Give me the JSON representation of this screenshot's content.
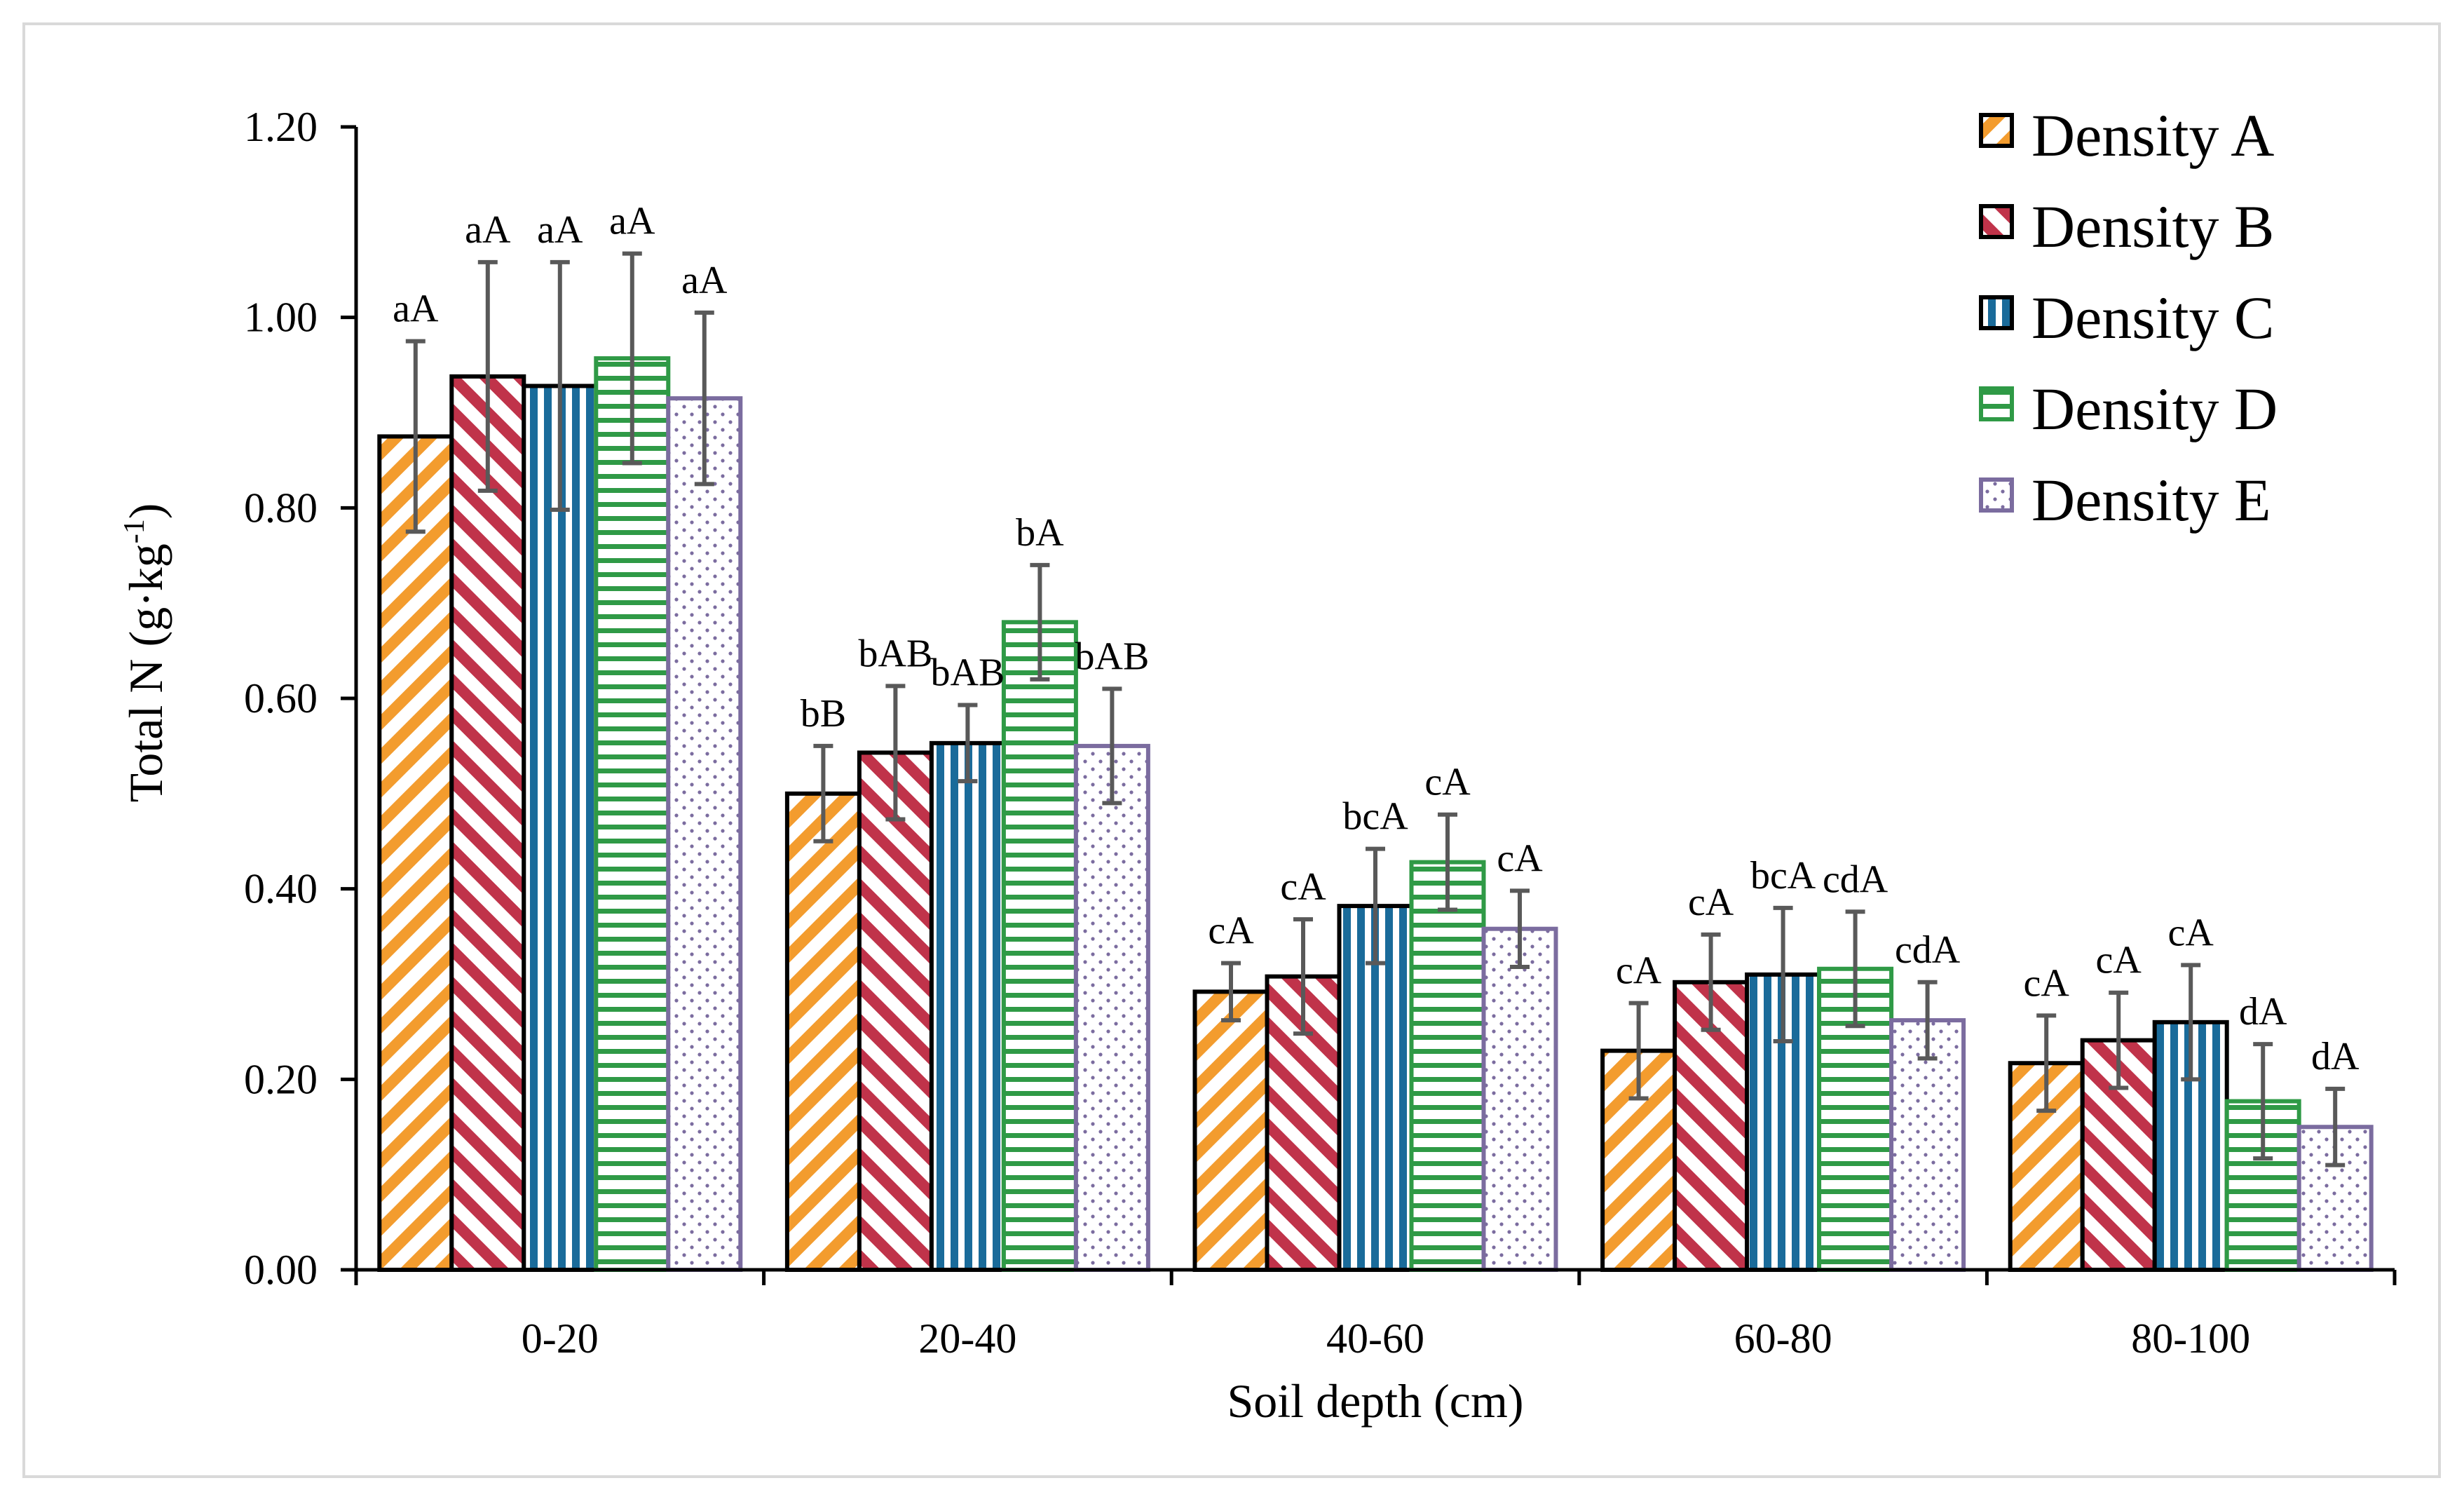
{
  "chart_data": {
    "type": "bar",
    "title": "",
    "xlabel": "Soil depth (cm)",
    "ylabel": "Total N (g·kg⁻¹)",
    "ylabel_main": "Total N (g·kg",
    "ylabel_sup": "-1",
    "ylabel_end": ")",
    "ylim": [
      0,
      1.2
    ],
    "yticks": [
      "0.00",
      "0.20",
      "0.40",
      "0.60",
      "0.80",
      "1.00",
      "1.20"
    ],
    "grid": false,
    "legend_position": "top-right",
    "categories": [
      "0-20",
      "20-40",
      "40-60",
      "60-80",
      "80-100"
    ],
    "series": [
      {
        "name": "Density A",
        "color": "#f39c2e",
        "pattern": "diagonal-forward",
        "values": [
          0.875,
          0.5,
          0.292,
          0.23,
          0.217
        ],
        "errors": [
          0.1,
          0.05,
          0.03,
          0.05,
          0.05
        ],
        "labels": [
          "aA",
          "bB",
          "cA",
          "cA",
          "cA"
        ]
      },
      {
        "name": "Density B",
        "color": "#c0334a",
        "pattern": "diagonal-backward",
        "values": [
          0.938,
          0.543,
          0.308,
          0.302,
          0.241
        ],
        "errors": [
          0.12,
          0.07,
          0.06,
          0.05,
          0.05
        ],
        "labels": [
          "aA",
          "bAB",
          "cA",
          "cA",
          "cA"
        ]
      },
      {
        "name": "Density C",
        "color": "#1a6b9a",
        "pattern": "vertical",
        "values": [
          0.928,
          0.553,
          0.382,
          0.31,
          0.26
        ],
        "errors": [
          0.13,
          0.04,
          0.06,
          0.07,
          0.06
        ],
        "labels": [
          "aA",
          "bAB",
          "bcA",
          "bcA",
          "cA"
        ]
      },
      {
        "name": "Density D",
        "color": "#2f9a46",
        "pattern": "horizontal",
        "values": [
          0.957,
          0.68,
          0.428,
          0.316,
          0.177
        ],
        "errors": [
          0.11,
          0.06,
          0.05,
          0.06,
          0.06
        ],
        "labels": [
          "aA",
          "bA",
          "cA",
          "cdA",
          "dA"
        ]
      },
      {
        "name": "Density E",
        "color": "#7b6c9f",
        "pattern": "dots",
        "values": [
          0.915,
          0.55,
          0.358,
          0.262,
          0.15
        ],
        "errors": [
          0.09,
          0.06,
          0.04,
          0.04,
          0.04
        ],
        "labels": [
          "aA",
          "bAB",
          "cA",
          "cdA",
          "dA"
        ]
      }
    ]
  }
}
